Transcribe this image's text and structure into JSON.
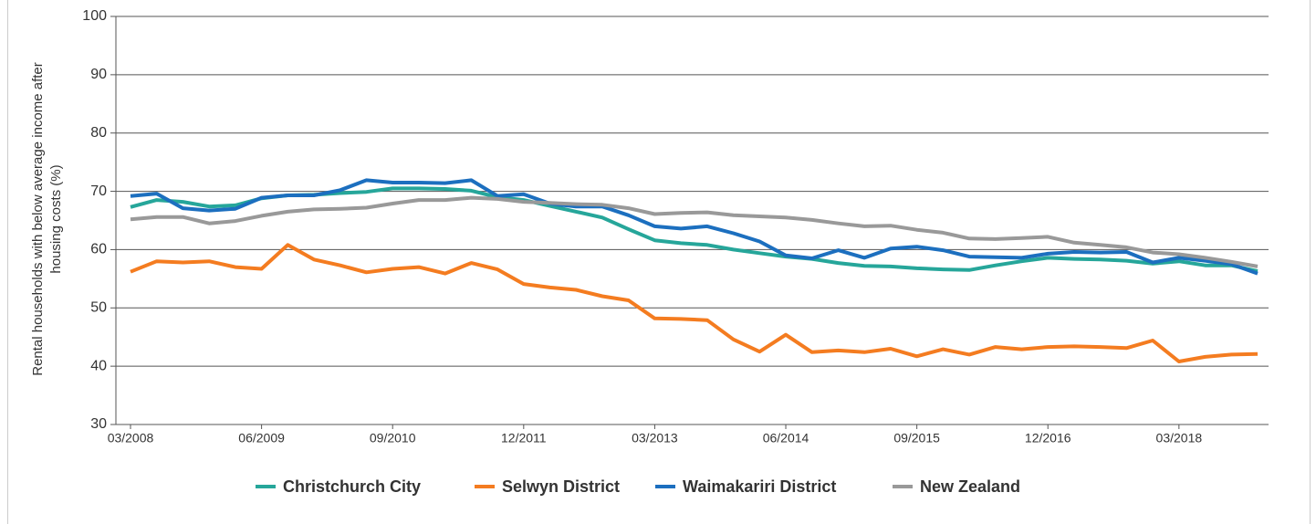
{
  "chart_data": {
    "type": "line",
    "ylabel": [
      "Rental households with below average income after",
      "housing costs (%)"
    ],
    "categories": [
      "03/2008",
      null,
      null,
      null,
      null,
      "06/2009",
      null,
      null,
      null,
      null,
      "09/2010",
      null,
      null,
      null,
      null,
      "12/2011",
      null,
      null,
      null,
      null,
      "03/2013",
      null,
      null,
      null,
      null,
      "06/2014",
      null,
      null,
      null,
      null,
      "09/2015",
      null,
      null,
      null,
      null,
      "12/2016",
      null,
      null,
      null,
      null,
      "03/2018",
      null,
      null,
      null
    ],
    "series": [
      {
        "name": "Christchurch City",
        "color": "#26a69a",
        "values": [
          67.3,
          68.5,
          68.2,
          67.4,
          67.6,
          68.8,
          69.3,
          69.4,
          69.7,
          69.9,
          70.5,
          70.5,
          70.4,
          70.1,
          69,
          68.5,
          67.5,
          66.5,
          65.5,
          63.5,
          61.6,
          61.1,
          60.8,
          60,
          59.4,
          58.8,
          58.4,
          57.7,
          57.2,
          57.1,
          56.8,
          56.6,
          56.5,
          57.3,
          58,
          58.6,
          58.4,
          58.3,
          58.1,
          57.6,
          58,
          57.3,
          57.3,
          56.3
        ]
      },
      {
        "name": "Selwyn District",
        "color": "#f47c20",
        "values": [
          56.2,
          58,
          57.8,
          58,
          57,
          56.7,
          60.8,
          58.3,
          57.3,
          56.1,
          56.7,
          57,
          55.9,
          57.7,
          56.6,
          54.1,
          53.5,
          53.1,
          52,
          51.3,
          48.2,
          48.1,
          47.9,
          44.6,
          42.5,
          45.4,
          42.4,
          42.7,
          42.4,
          43,
          41.7,
          42.9,
          42,
          43.3,
          42.9,
          43.3,
          43.4,
          43.3,
          43.1,
          44.4,
          40.8,
          41.6,
          42,
          42.1
        ]
      },
      {
        "name": "Waimakariri District",
        "color": "#1c6fbf",
        "values": [
          69.2,
          69.6,
          67.1,
          66.7,
          67,
          68.9,
          69.3,
          69.3,
          70.2,
          71.9,
          71.5,
          71.5,
          71.4,
          71.9,
          69.2,
          69.5,
          67.9,
          67.4,
          67.4,
          65.9,
          64,
          63.6,
          64,
          62.8,
          61.4,
          59,
          58.5,
          59.9,
          58.6,
          60.2,
          60.5,
          59.9,
          58.8,
          58.7,
          58.6,
          59.3,
          59.6,
          59.5,
          59.6,
          57.8,
          58.6,
          58.1,
          57.5,
          55.9
        ]
      },
      {
        "name": "New Zealand",
        "color": "#999999",
        "values": [
          65.2,
          65.6,
          65.6,
          64.5,
          64.9,
          65.8,
          66.5,
          66.9,
          67,
          67.2,
          67.9,
          68.5,
          68.5,
          68.9,
          68.7,
          68.2,
          68,
          67.8,
          67.7,
          67.1,
          66.1,
          66.3,
          66.4,
          65.9,
          65.7,
          65.5,
          65.1,
          64.5,
          64,
          64.1,
          63.4,
          62.9,
          61.9,
          61.8,
          62,
          62.2,
          61.2,
          60.8,
          60.4,
          59.5,
          59.2,
          58.6,
          57.9,
          57.1
        ]
      }
    ],
    "ylim": [
      30,
      100
    ],
    "yticks": [
      30,
      40,
      50,
      60,
      70,
      80,
      90,
      100
    ],
    "grid": true,
    "legend": "bottom"
  }
}
